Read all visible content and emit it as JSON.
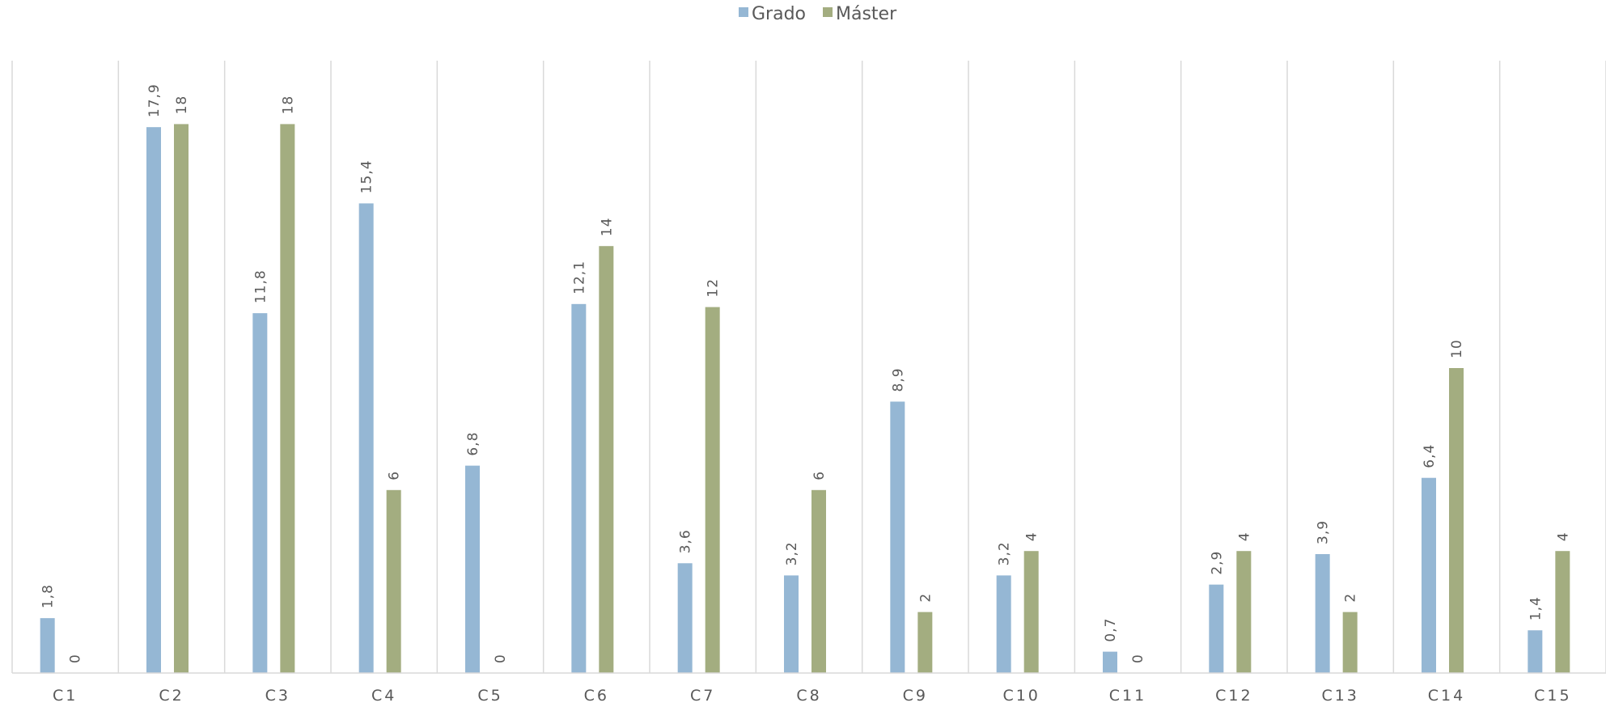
{
  "chart_data": {
    "type": "bar",
    "title": "",
    "xlabel": "",
    "ylabel": "",
    "categories": [
      "C1",
      "C2",
      "C3",
      "C4",
      "C5",
      "C6",
      "C7",
      "C8",
      "C9",
      "C10",
      "C11",
      "C12",
      "C13",
      "C14",
      "C15"
    ],
    "series": [
      {
        "name": "Grado",
        "color": "#95b7d4",
        "values": [
          1.8,
          17.9,
          11.8,
          15.4,
          6.8,
          12.1,
          3.6,
          3.2,
          8.9,
          3.2,
          0.7,
          2.9,
          3.9,
          6.4,
          1.4
        ],
        "labels": [
          "1,8",
          "17,9",
          "11,8",
          "15,4",
          "6,8",
          "12,1",
          "3,6",
          "3,2",
          "8,9",
          "3,2",
          "0,7",
          "2,9",
          "3,9",
          "6,4",
          "1,4"
        ]
      },
      {
        "name": "Máster",
        "color": "#a3ad80",
        "values": [
          0,
          18,
          18,
          6,
          0,
          14,
          12,
          6,
          2,
          4,
          0,
          4,
          2,
          10,
          4
        ],
        "labels": [
          "0",
          "18",
          "18",
          "6",
          "0",
          "14",
          "12",
          "6",
          "2",
          "4",
          "0",
          "4",
          "2",
          "10",
          "4"
        ]
      }
    ],
    "ylim": [
      0,
      20
    ],
    "grid": "vertical category separators",
    "legend_position": "top-center",
    "data_labels": "rotated vertical above bars"
  }
}
